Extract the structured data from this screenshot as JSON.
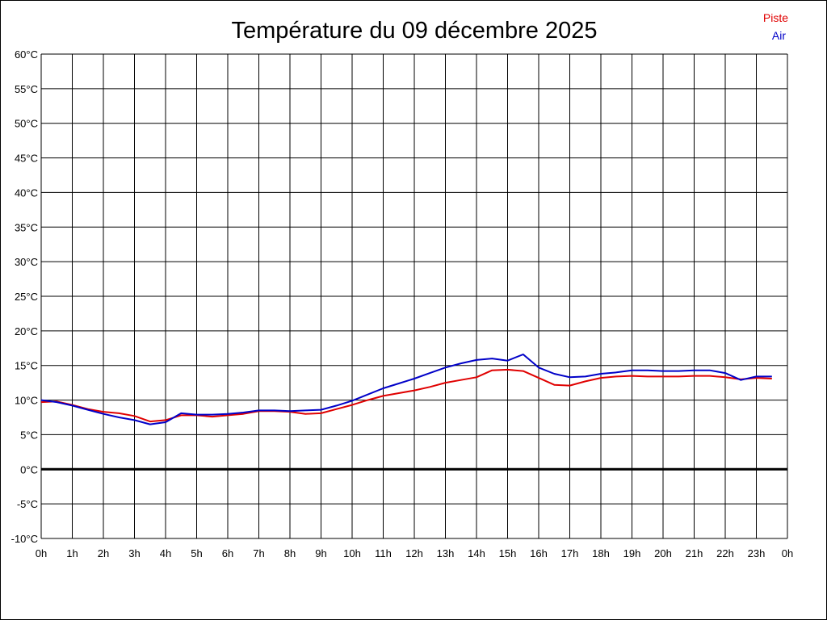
{
  "chart_data": {
    "type": "line",
    "title": "Température du 09 décembre 2025",
    "xlabel": "",
    "ylabel": "",
    "x_ticks": [
      "0h",
      "1h",
      "2h",
      "3h",
      "4h",
      "5h",
      "6h",
      "7h",
      "8h",
      "9h",
      "10h",
      "11h",
      "12h",
      "13h",
      "14h",
      "15h",
      "16h",
      "17h",
      "18h",
      "19h",
      "20h",
      "21h",
      "22h",
      "23h",
      "0h"
    ],
    "y_ticks": [
      "60°C",
      "55°C",
      "50°C",
      "45°C",
      "40°C",
      "35°C",
      "30°C",
      "25°C",
      "20°C",
      "15°C",
      "10°C",
      "5°C",
      "0°C",
      "-5°C",
      "-10°C"
    ],
    "xlim": [
      0,
      24
    ],
    "ylim": [
      -10,
      60
    ],
    "grid": true,
    "legend_position": "top-right",
    "zero_line": true,
    "series": [
      {
        "name": "Piste",
        "color": "#e00000",
        "x": [
          0,
          0.5,
          1,
          1.5,
          2,
          2.5,
          3,
          3.5,
          4,
          4.5,
          5,
          5.5,
          6,
          6.5,
          7,
          7.5,
          8,
          8.5,
          9,
          9.5,
          10,
          10.5,
          11,
          11.5,
          12,
          12.5,
          13,
          13.5,
          14,
          14.5,
          15,
          15.5,
          16,
          16.5,
          17,
          17.5,
          18,
          18.5,
          19,
          19.5,
          20,
          20.5,
          21,
          21.5,
          22,
          22.5,
          23,
          23.5
        ],
        "y": [
          9.7,
          9.8,
          9.3,
          8.7,
          8.3,
          8.1,
          7.7,
          6.9,
          7.1,
          7.8,
          7.8,
          7.6,
          7.8,
          8.0,
          8.4,
          8.4,
          8.3,
          8.0,
          8.1,
          8.7,
          9.3,
          10.0,
          10.6,
          11.0,
          11.4,
          11.9,
          12.5,
          12.9,
          13.3,
          14.3,
          14.4,
          14.2,
          13.2,
          12.2,
          12.1,
          12.7,
          13.2,
          13.4,
          13.5,
          13.4,
          13.4,
          13.4,
          13.5,
          13.5,
          13.3,
          13.0,
          13.2,
          13.1
        ]
      },
      {
        "name": "Air",
        "color": "#0000c8",
        "x": [
          0,
          0.5,
          1,
          1.5,
          2,
          2.5,
          3,
          3.5,
          4,
          4.5,
          5,
          5.5,
          6,
          6.5,
          7,
          7.5,
          8,
          8.5,
          9,
          9.5,
          10,
          10.5,
          11,
          11.5,
          12,
          12.5,
          13,
          13.5,
          14,
          14.5,
          15,
          15.5,
          16,
          16.5,
          17,
          17.5,
          18,
          18.5,
          19,
          19.5,
          20,
          20.5,
          21,
          21.5,
          22,
          22.5,
          23,
          23.5
        ],
        "y": [
          10.0,
          9.7,
          9.2,
          8.6,
          8.0,
          7.5,
          7.1,
          6.5,
          6.8,
          8.1,
          7.9,
          7.9,
          8.0,
          8.2,
          8.5,
          8.5,
          8.4,
          8.5,
          8.6,
          9.2,
          9.9,
          10.8,
          11.7,
          12.4,
          13.1,
          13.9,
          14.7,
          15.3,
          15.8,
          16.0,
          15.7,
          16.6,
          14.7,
          13.8,
          13.3,
          13.4,
          13.8,
          14.0,
          14.3,
          14.3,
          14.2,
          14.2,
          14.3,
          14.3,
          13.9,
          12.9,
          13.4,
          13.4
        ]
      }
    ]
  }
}
